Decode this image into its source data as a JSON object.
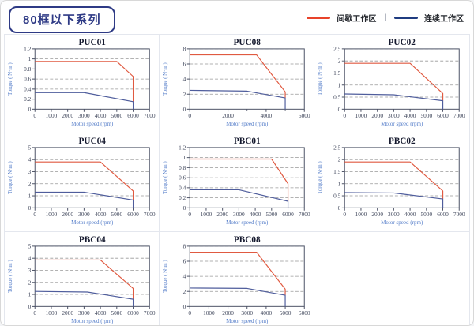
{
  "header": {
    "badge": "80框以下系列",
    "legend": {
      "intermittent": "间歇工作区",
      "separator": "|",
      "continuous": "连续工作区"
    }
  },
  "colors": {
    "intermittent": "#e8432a",
    "continuous": "#1f3c80",
    "curve_red": "#e05a41",
    "curve_blue": "#4f5d9c",
    "plot_border": "#4a5064",
    "grid_dash": "#999999",
    "tick_text": "#3c4358",
    "axis_label": "#4f79c7",
    "title_text": "#15192e"
  },
  "chart_data": [
    {
      "type": "line",
      "title": "PUC01",
      "xlabel": "Motor speed (rpm)",
      "ylabel": "Torque ( N·m )",
      "xlim": [
        0,
        7000
      ],
      "ylim": [
        0,
        1.2
      ],
      "xticks": [
        0,
        1000,
        2000,
        3000,
        4000,
        5000,
        6000,
        7000
      ],
      "xticks_minor": [],
      "yticks": [
        0,
        0.2,
        0.4,
        0.6,
        0.8,
        1,
        1.2
      ],
      "ytick_labels": [
        "0",
        "0.2",
        "0.4",
        "0.6",
        "0.8",
        "1",
        "1.2"
      ],
      "grid": "horizontal-dashed",
      "series": [
        {
          "name": "间歇工作区",
          "color_key": "curve_red",
          "points": [
            [
              0,
              0.95
            ],
            [
              5000,
              0.95
            ],
            [
              6000,
              0.65
            ],
            [
              6000,
              0.15
            ]
          ]
        },
        {
          "name": "连续工作区",
          "color_key": "curve_blue",
          "points": [
            [
              0,
              0.33
            ],
            [
              3000,
              0.33
            ],
            [
              6000,
              0.15
            ],
            [
              6000,
              0
            ]
          ]
        }
      ]
    },
    {
      "type": "line",
      "title": "PUC08",
      "xlabel": "Motor speed (rpm)",
      "ylabel": "Torque ( N·m )",
      "xlim": [
        0,
        6000
      ],
      "ylim": [
        0,
        8
      ],
      "xticks": [
        0,
        2000,
        4000,
        6000
      ],
      "xticks_minor": [
        1000,
        3000,
        5000
      ],
      "yticks": [
        0,
        2,
        4,
        6,
        8
      ],
      "ytick_labels": [
        "0",
        "2",
        "4",
        "6",
        "8"
      ],
      "grid": "horizontal-dashed",
      "series": [
        {
          "name": "间歇工作区",
          "color_key": "curve_red",
          "points": [
            [
              0,
              7.2
            ],
            [
              3500,
              7.2
            ],
            [
              5000,
              2.3
            ],
            [
              5000,
              1.5
            ]
          ]
        },
        {
          "name": "连续工作区",
          "color_key": "curve_blue",
          "points": [
            [
              0,
              2.5
            ],
            [
              3000,
              2.4
            ],
            [
              5000,
              1.5
            ],
            [
              5000,
              0
            ]
          ]
        }
      ]
    },
    {
      "type": "line",
      "title": "PUC02",
      "xlabel": "Motor speed (rpm)",
      "ylabel": "Torque ( N·m )",
      "xlim": [
        0,
        7000
      ],
      "ylim": [
        0,
        2.5
      ],
      "xticks": [
        0,
        1000,
        2000,
        3000,
        4000,
        5000,
        6000,
        7000
      ],
      "xticks_minor": [],
      "yticks": [
        0,
        0.5,
        1,
        1.5,
        2,
        2.5
      ],
      "ytick_labels": [
        "0",
        "0.5",
        "1",
        "1.5",
        "2",
        "2.5"
      ],
      "grid": "horizontal-dashed",
      "series": [
        {
          "name": "间歇工作区",
          "color_key": "curve_red",
          "points": [
            [
              0,
              1.9
            ],
            [
              4000,
              1.9
            ],
            [
              6000,
              0.65
            ],
            [
              6000,
              0.35
            ]
          ]
        },
        {
          "name": "连续工作区",
          "color_key": "curve_blue",
          "points": [
            [
              0,
              0.63
            ],
            [
              3000,
              0.6
            ],
            [
              6000,
              0.35
            ],
            [
              6000,
              0
            ]
          ]
        }
      ]
    },
    {
      "type": "line",
      "title": "PUC04",
      "xlabel": "Motor speed (rpm)",
      "ylabel": "Torque ( N·m )",
      "xlim": [
        0,
        7000
      ],
      "ylim": [
        0,
        5
      ],
      "xticks": [
        0,
        1000,
        2000,
        3000,
        4000,
        5000,
        6000,
        7000
      ],
      "xticks_minor": [],
      "yticks": [
        0,
        1,
        2,
        3,
        4,
        5
      ],
      "ytick_labels": [
        "0",
        "1",
        "2",
        "3",
        "4",
        "5"
      ],
      "grid": "horizontal-dashed",
      "series": [
        {
          "name": "间歇工作区",
          "color_key": "curve_red",
          "points": [
            [
              0,
              3.8
            ],
            [
              4000,
              3.8
            ],
            [
              6000,
              1.4
            ],
            [
              6000,
              0.65
            ]
          ]
        },
        {
          "name": "连续工作区",
          "color_key": "curve_blue",
          "points": [
            [
              0,
              1.3
            ],
            [
              3000,
              1.3
            ],
            [
              6000,
              0.65
            ],
            [
              6000,
              0
            ]
          ]
        }
      ]
    },
    {
      "type": "line",
      "title": "PBC01",
      "xlabel": "Motor speed (rpm)",
      "ylabel": "Torque ( N·m )",
      "xlim": [
        0,
        7000
      ],
      "ylim": [
        0,
        1.2
      ],
      "xticks": [
        0,
        1000,
        2000,
        3000,
        4000,
        5000,
        6000,
        7000
      ],
      "xticks_minor": [],
      "yticks": [
        0,
        0.2,
        0.4,
        0.6,
        0.8,
        1,
        1.2
      ],
      "ytick_labels": [
        "0",
        "0.2",
        "0.4",
        "0.6",
        "0.8",
        "1",
        "1.2"
      ],
      "grid": "horizontal-dashed",
      "series": [
        {
          "name": "间歇工作区",
          "color_key": "curve_red",
          "points": [
            [
              0,
              0.97
            ],
            [
              5000,
              0.97
            ],
            [
              6000,
              0.48
            ],
            [
              6000,
              0.13
            ]
          ]
        },
        {
          "name": "连续工作区",
          "color_key": "curve_blue",
          "points": [
            [
              0,
              0.36
            ],
            [
              3000,
              0.36
            ],
            [
              6000,
              0.13
            ],
            [
              6000,
              0
            ]
          ]
        }
      ]
    },
    {
      "type": "line",
      "title": "PBC02",
      "xlabel": "Motor speed (rpm)",
      "ylabel": "Torque ( N·m )",
      "xlim": [
        0,
        7000
      ],
      "ylim": [
        0,
        2.5
      ],
      "xticks": [
        0,
        1000,
        2000,
        3000,
        4000,
        5000,
        6000,
        7000
      ],
      "xticks_minor": [],
      "yticks": [
        0,
        0.5,
        1,
        1.5,
        2,
        2.5
      ],
      "ytick_labels": [
        "0",
        "0.5",
        "1",
        "1.5",
        "2",
        "2.5"
      ],
      "grid": "horizontal-dashed",
      "series": [
        {
          "name": "间歇工作区",
          "color_key": "curve_red",
          "points": [
            [
              0,
              1.9
            ],
            [
              4000,
              1.9
            ],
            [
              6000,
              0.7
            ],
            [
              6000,
              0.37
            ]
          ]
        },
        {
          "name": "连续工作区",
          "color_key": "curve_blue",
          "points": [
            [
              0,
              0.63
            ],
            [
              3000,
              0.62
            ],
            [
              6000,
              0.37
            ],
            [
              6000,
              0
            ]
          ]
        }
      ]
    },
    {
      "type": "line",
      "title": "PBC04",
      "xlabel": "Motor speed (rpm)",
      "ylabel": "Torque ( N·m )",
      "xlim": [
        0,
        7000
      ],
      "ylim": [
        0,
        5
      ],
      "xticks": [
        0,
        1000,
        2000,
        3000,
        4000,
        5000,
        6000,
        7000
      ],
      "xticks_minor": [],
      "yticks": [
        0,
        1,
        2,
        3,
        4,
        5
      ],
      "ytick_labels": [
        "0",
        "1",
        "2",
        "3",
        "4",
        "5"
      ],
      "grid": "horizontal-dashed",
      "series": [
        {
          "name": "间歇工作区",
          "color_key": "curve_red",
          "points": [
            [
              0,
              3.85
            ],
            [
              4000,
              3.85
            ],
            [
              6000,
              1.5
            ],
            [
              6000,
              0.6
            ]
          ]
        },
        {
          "name": "连续工作区",
          "color_key": "curve_blue",
          "points": [
            [
              0,
              1.25
            ],
            [
              3200,
              1.2
            ],
            [
              6000,
              0.6
            ],
            [
              6000,
              0
            ]
          ]
        }
      ]
    },
    {
      "type": "line",
      "title": "PBC08",
      "xlabel": "Motor speed (rpm)",
      "ylabel": "Torque ( N·m )",
      "xlim": [
        0,
        6000
      ],
      "ylim": [
        0,
        8
      ],
      "xticks": [
        0,
        1000,
        2000,
        3000,
        4000,
        5000,
        6000
      ],
      "xticks_minor": [],
      "yticks": [
        0,
        2,
        4,
        6,
        8
      ],
      "ytick_labels": [
        "0",
        "2",
        "4",
        "6",
        "8"
      ],
      "grid": "horizontal-dashed",
      "series": [
        {
          "name": "间歇工作区",
          "color_key": "curve_red",
          "points": [
            [
              0,
              7.2
            ],
            [
              3500,
              7.2
            ],
            [
              5000,
              2.3
            ],
            [
              5000,
              1.5
            ]
          ]
        },
        {
          "name": "连续工作区",
          "color_key": "curve_blue",
          "points": [
            [
              0,
              2.45
            ],
            [
              3000,
              2.4
            ],
            [
              5000,
              1.5
            ],
            [
              5000,
              0
            ]
          ]
        }
      ]
    }
  ]
}
